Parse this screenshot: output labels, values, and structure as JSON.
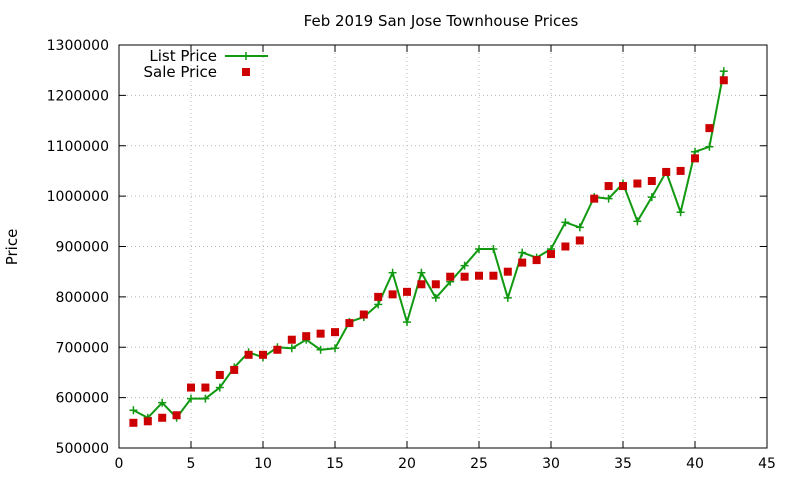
{
  "chart_data": {
    "type": "line",
    "title": "Feb 2019 San Jose Townhouse Prices",
    "xlabel": "",
    "ylabel": "Price",
    "xlim": [
      0,
      45
    ],
    "ylim": [
      500000,
      1300000
    ],
    "x_ticks": [
      0,
      5,
      10,
      15,
      20,
      25,
      30,
      35,
      40,
      45
    ],
    "y_ticks": [
      500000,
      600000,
      700000,
      800000,
      900000,
      1000000,
      1100000,
      1200000,
      1300000
    ],
    "grid": true,
    "legend_position": "top-left",
    "series": [
      {
        "name": "List Price",
        "style": "line+plus",
        "color": "#119911",
        "x": [
          1,
          2,
          3,
          4,
          5,
          6,
          7,
          8,
          9,
          10,
          11,
          12,
          13,
          14,
          15,
          16,
          17,
          18,
          19,
          20,
          21,
          22,
          23,
          24,
          25,
          26,
          27,
          28,
          29,
          30,
          31,
          32,
          33,
          34,
          35,
          36,
          37,
          38,
          39,
          40,
          41,
          42
        ],
        "values": [
          575000,
          560000,
          590000,
          560000,
          598000,
          598000,
          620000,
          660000,
          690000,
          680000,
          700000,
          698000,
          715000,
          695000,
          698000,
          750000,
          760000,
          785000,
          848000,
          750000,
          848000,
          798000,
          830000,
          862000,
          895000,
          895000,
          798000,
          888000,
          878000,
          895000,
          948000,
          938000,
          998000,
          995000,
          1025000,
          950000,
          998000,
          1048000,
          968000,
          1088000,
          1098000,
          1248000
        ]
      },
      {
        "name": "Sale Price",
        "style": "square",
        "color": "#cc0000",
        "x": [
          1,
          2,
          3,
          4,
          5,
          6,
          7,
          8,
          9,
          10,
          11,
          12,
          13,
          14,
          15,
          16,
          17,
          18,
          19,
          20,
          21,
          22,
          23,
          24,
          25,
          26,
          27,
          28,
          29,
          30,
          31,
          32,
          33,
          34,
          35,
          36,
          37,
          38,
          39,
          40,
          41,
          42
        ],
        "values": [
          550000,
          553000,
          560000,
          565000,
          620000,
          620000,
          645000,
          655000,
          685000,
          685000,
          695000,
          715000,
          722000,
          727000,
          730000,
          748000,
          765000,
          800000,
          805000,
          810000,
          825000,
          825000,
          840000,
          840000,
          842000,
          842000,
          850000,
          868000,
          873000,
          885000,
          900000,
          912000,
          995000,
          1020000,
          1020000,
          1025000,
          1030000,
          1048000,
          1050000,
          1075000,
          1135000,
          1230000
        ]
      }
    ]
  }
}
